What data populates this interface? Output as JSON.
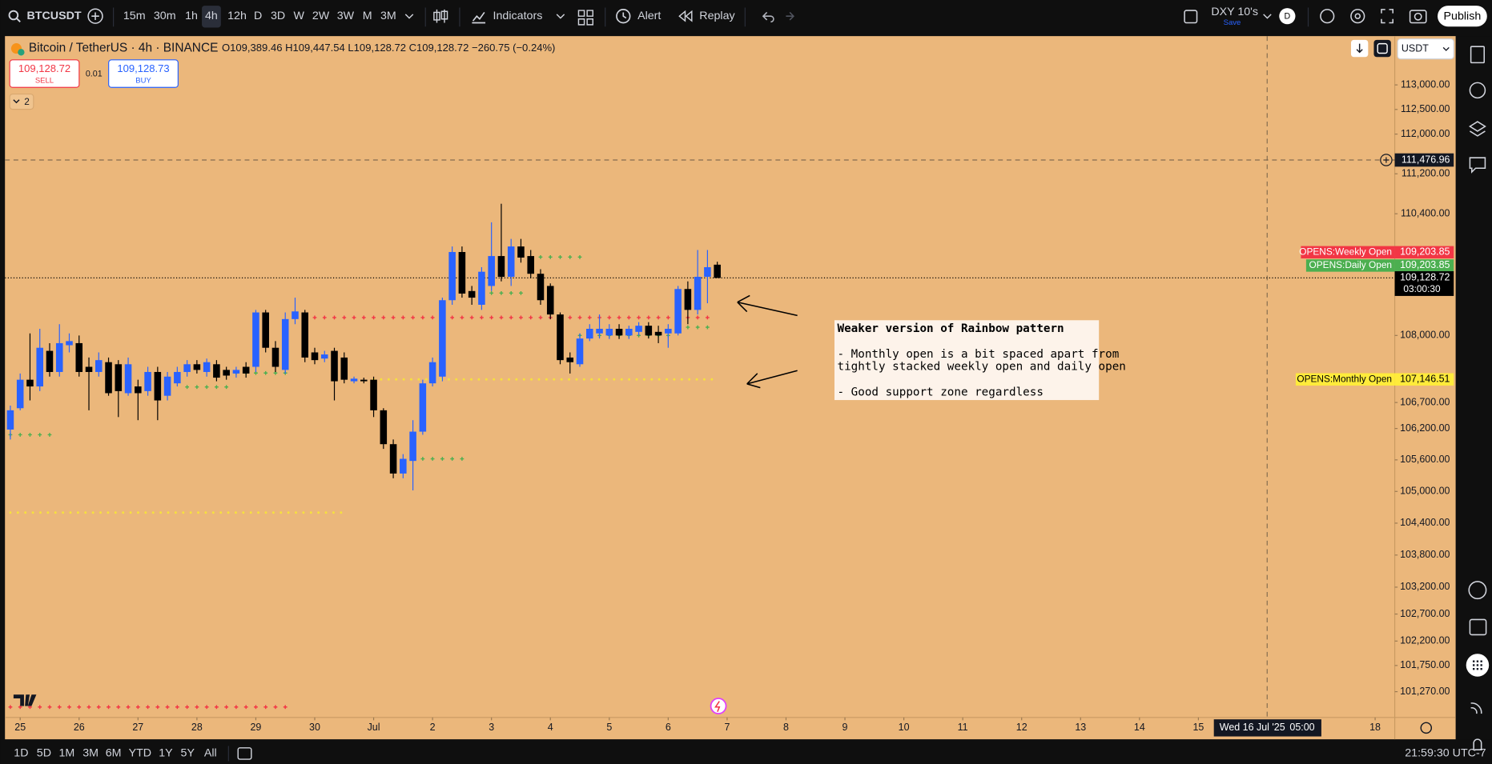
{
  "toolbar": {
    "symbol": "BTCUSDT",
    "intervals": [
      "15m",
      "30m",
      "1h",
      "4h",
      "12h",
      "D",
      "3D",
      "W",
      "2W",
      "3W",
      "M",
      "3M"
    ],
    "active_interval_index": 3,
    "indicators": "Indicators",
    "alert": "Alert",
    "replay": "Replay",
    "layout": "DXY 10's",
    "save": "Save",
    "avatar": "D",
    "publish": "Publish"
  },
  "legend": {
    "title": "Bitcoin / TetherUS · 4h · BINANCE",
    "ohlc": "O109,389.46 H109,447.54 L109,128.72 C109,128.72 −260.75 (−0.24%)"
  },
  "trade": {
    "sell_price": "109,128.72",
    "sell": "SELL",
    "spread": "0.01",
    "buy_price": "109,128.73",
    "buy": "BUY"
  },
  "indicators_collapsed": "2",
  "currency": "USDT",
  "chart_data": {
    "type": "candlestick",
    "up_color": "#2962ff",
    "down_color": "#000000",
    "log_scale": true,
    "grid": false,
    "open": [
      106180,
      106590,
      107140,
      107010,
      107700,
      107290,
      107810,
      107850,
      107390,
      107290,
      107480,
      107440,
      106880,
      107010,
      106920,
      107290,
      106830,
      107070,
      107290,
      107440,
      107290,
      107440,
      107330,
      107260,
      107390,
      107390,
      108450,
      107760,
      107330,
      108320,
      108450,
      107670,
      107550,
      107700,
      107570,
      107110,
      107140,
      107140,
      106550,
      105900,
      105340,
      105580,
      106140,
      107070,
      107200,
      108690,
      109640,
      108870,
      108600,
      108970,
      109560,
      109150,
      109750,
      109560,
      109210,
      108970,
      108410,
      107570,
      107440,
      107940,
      108040,
      108000,
      108130,
      108000,
      108070,
      108190,
      108070,
      108040,
      108040,
      108910,
      108500,
      109150,
      109389.46
    ],
    "high": [
      106640,
      107260,
      108040,
      108130,
      107850,
      108220,
      108040,
      108000,
      107570,
      107670,
      107570,
      107520,
      107570,
      107140,
      107390,
      107390,
      107290,
      107390,
      107520,
      107520,
      107550,
      107520,
      107390,
      107390,
      107480,
      108500,
      108500,
      107890,
      108450,
      108740,
      108500,
      107760,
      107700,
      107760,
      107670,
      107200,
      107180,
      107200,
      106590,
      105990,
      105710,
      106360,
      107140,
      107570,
      108740,
      109750,
      109750,
      108970,
      109340,
      110230,
      110600,
      109900,
      109900,
      109680,
      109300,
      109020,
      108450,
      107670,
      108040,
      108220,
      108410,
      108220,
      108220,
      108190,
      108260,
      108260,
      108190,
      108220,
      108970,
      109060,
      109680,
      109680,
      109447.54
    ],
    "low": [
      105990,
      106550,
      106740,
      106920,
      107200,
      107200,
      107670,
      107200,
      106550,
      107200,
      106830,
      106420,
      106830,
      106360,
      106830,
      106360,
      106740,
      107010,
      107200,
      107260,
      107200,
      107110,
      107140,
      107180,
      107180,
      107290,
      107670,
      107290,
      107260,
      108220,
      107480,
      107440,
      107480,
      106740,
      107070,
      107070,
      107070,
      106420,
      105810,
      105250,
      105250,
      105020,
      106080,
      107010,
      107110,
      108600,
      108740,
      108600,
      108500,
      108870,
      109060,
      108970,
      109430,
      109120,
      108600,
      108320,
      107440,
      107260,
      107390,
      107890,
      107940,
      107930,
      107930,
      107930,
      108000,
      107940,
      107850,
      107760,
      108000,
      108220,
      108410,
      108630,
      109128.72
    ],
    "close": [
      106550,
      107140,
      107010,
      107760,
      107290,
      107850,
      107890,
      107290,
      107290,
      107520,
      106880,
      106920,
      107440,
      106880,
      107290,
      106740,
      107200,
      107290,
      107440,
      107330,
      107480,
      107180,
      107220,
      107330,
      107260,
      108450,
      107760,
      107390,
      108320,
      108470,
      107570,
      107520,
      107630,
      107110,
      107140,
      107160,
      107110,
      106550,
      105900,
      105340,
      105620,
      106140,
      107070,
      107480,
      108690,
      109640,
      108820,
      108740,
      109250,
      109560,
      109150,
      109750,
      109530,
      109210,
      108690,
      108410,
      107520,
      107480,
      107940,
      108130,
      108130,
      108130,
      108000,
      108130,
      108190,
      108000,
      108000,
      108130,
      108910,
      108500,
      109150,
      109340,
      109128.72
    ],
    "xlim": [
      -0.55,
      141.0
    ],
    "ylim": [
      100800,
      114000
    ],
    "xticks": [
      {
        "value": 1,
        "label": "25"
      },
      {
        "value": 7,
        "label": "26"
      },
      {
        "value": 13,
        "label": "27"
      },
      {
        "value": 19,
        "label": "28"
      },
      {
        "value": 25,
        "label": "29"
      },
      {
        "value": 31,
        "label": "30"
      },
      {
        "value": 37,
        "label": "Jul"
      },
      {
        "value": 43,
        "label": "2"
      },
      {
        "value": 49,
        "label": "3"
      },
      {
        "value": 55,
        "label": "4"
      },
      {
        "value": 61,
        "label": "5"
      },
      {
        "value": 67,
        "label": "6"
      },
      {
        "value": 73,
        "label": "7"
      },
      {
        "value": 79,
        "label": "8"
      },
      {
        "value": 85,
        "label": "9"
      },
      {
        "value": 91,
        "label": "10"
      },
      {
        "value": 97,
        "label": "11"
      },
      {
        "value": 103,
        "label": "12"
      },
      {
        "value": 109,
        "label": "13"
      },
      {
        "value": 115,
        "label": "14"
      },
      {
        "value": 121,
        "label": "15"
      },
      {
        "value": 139,
        "label": "18"
      }
    ],
    "yticks": [
      {
        "value": 113000,
        "label": "113,000.00"
      },
      {
        "value": 112500,
        "label": "112,500.00"
      },
      {
        "value": 112000,
        "label": "112,000.00"
      },
      {
        "value": 111200,
        "label": "111,200.00"
      },
      {
        "value": 110400,
        "label": "110,400.00"
      },
      {
        "value": 108000,
        "label": "108,000.00"
      },
      {
        "value": 106700,
        "label": "106,700.00"
      },
      {
        "value": 106200,
        "label": "106,200.00"
      },
      {
        "value": 105600,
        "label": "105,600.00"
      },
      {
        "value": 105000,
        "label": "105,000.00"
      },
      {
        "value": 104400,
        "label": "104,400.00"
      },
      {
        "value": 103800,
        "label": "103,800.00"
      },
      {
        "value": 103200,
        "label": "103,200.00"
      },
      {
        "value": 102700,
        "label": "102,700.00"
      },
      {
        "value": 102200,
        "label": "102,200.00"
      },
      {
        "value": 101750,
        "label": "101,750.00"
      },
      {
        "value": 101270,
        "label": "101,270.00"
      }
    ],
    "levels": [
      {
        "color": "#f5e23c",
        "marker": "dot",
        "value": 104600,
        "from": 0,
        "to": 34
      },
      {
        "color": "#f5e23c",
        "marker": "dot",
        "value": 107146.51,
        "from": 37,
        "to": 72
      },
      {
        "color": "#f23645",
        "marker": "plus",
        "value": 108350,
        "from": 31,
        "to": 71
      },
      {
        "color": "#f23645",
        "marker": "plus",
        "value": 100990,
        "from": 0,
        "to": 28
      },
      {
        "color": "#4caf50",
        "marker": "plus",
        "value": 106080,
        "from": 0,
        "to": 4
      },
      {
        "color": "#4caf50",
        "marker": "plus",
        "value": 107000,
        "from": 18,
        "to": 22
      },
      {
        "color": "#4caf50",
        "marker": "plus",
        "value": 107270,
        "from": 23,
        "to": 28
      },
      {
        "color": "#4caf50",
        "marker": "plus",
        "value": 105620,
        "from": 42,
        "to": 46
      },
      {
        "color": "#4caf50",
        "marker": "plus",
        "value": 108830,
        "from": 49,
        "to": 52
      },
      {
        "color": "#4caf50",
        "marker": "plus",
        "value": 109540,
        "from": 54,
        "to": 58
      },
      {
        "color": "#4caf50",
        "marker": "plus",
        "value": 108000,
        "from": 58,
        "to": 67
      },
      {
        "color": "#4caf50",
        "marker": "plus",
        "value": 108160,
        "from": 69,
        "to": 71
      }
    ],
    "price_labels": [
      {
        "name": "OPENS:Weekly Open",
        "value": 109203.85,
        "label": "109,203.85",
        "color": "#f23645",
        "text_color": "#ffffff"
      },
      {
        "name": "OPENS:Daily Open",
        "value": 109203.85,
        "label": "109,203.85",
        "color": "#4caf50",
        "text_color": "#ffffff"
      },
      {
        "name": "OPENS:Monthly Open",
        "value": 107146.51,
        "label": "107,146.51",
        "color": "#ffeb3b",
        "text_color": "#000000"
      }
    ],
    "last_price": {
      "value": 109128.72,
      "label": "109,128.72",
      "countdown": "03:00:30"
    },
    "crosshair": {
      "x": 128,
      "x_label": "Wed 16 Jul '25",
      "x_time": "05:00",
      "y": 111476.96,
      "y_label": "111,476.96"
    },
    "annotation": [
      "Weaker version of Rainbow pattern",
      "- Monthly open is a bit spaced apart from",
      "tightly stacked weekly open and daily open",
      "- Good support zone regardless"
    ]
  },
  "bottom_bar": {
    "ranges": [
      "1D",
      "5D",
      "1M",
      "3M",
      "6M",
      "YTD",
      "1Y",
      "5Y",
      "All"
    ],
    "clock": "21:59:30 UTC-7"
  }
}
